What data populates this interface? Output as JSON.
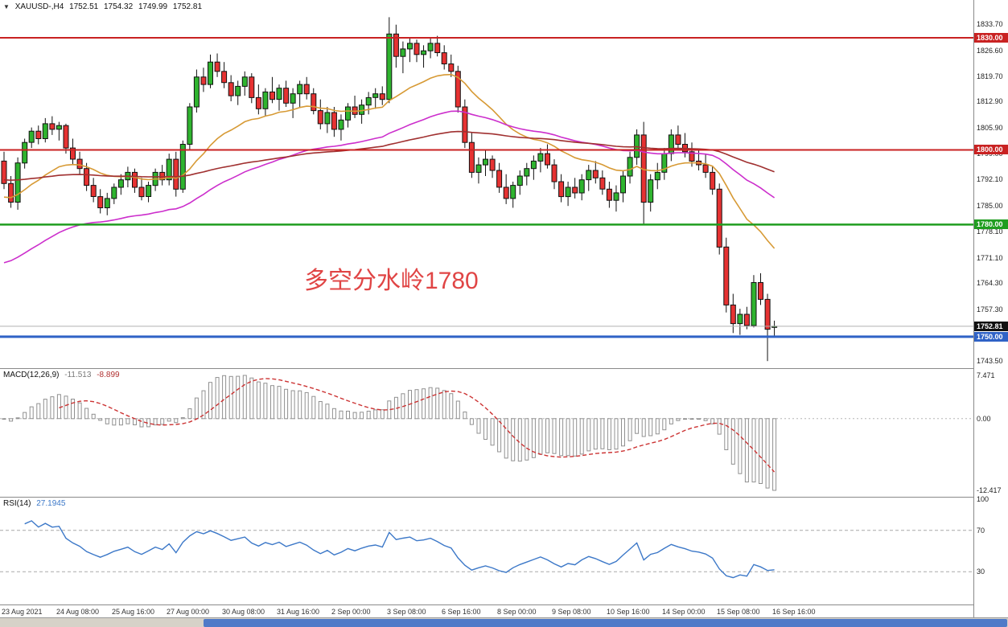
{
  "window": {
    "dropdown_icon": "▼",
    "symbol_period": "XAUUSD-,H4",
    "open": "1752.51",
    "high": "1754.32",
    "low": "1749.99",
    "close": "1752.81"
  },
  "annotation": {
    "text": "多空分水岭1780",
    "color": "#e04545"
  },
  "indicator_labels": {
    "macd_name": "MACD(12,26,9)",
    "macd_main": "-11.513",
    "macd_signal": "-8.899",
    "rsi_name": "RSI(14)",
    "rsi_value": "27.1945"
  },
  "price_axis": {
    "labels": [
      "1833.70",
      "1826.60",
      "1819.70",
      "1812.90",
      "1805.90",
      "1799.00",
      "1792.10",
      "1785.00",
      "1778.10",
      "1771.10",
      "1764.30",
      "1757.30",
      "1743.50"
    ],
    "tags": [
      {
        "value": "1830.00",
        "price": 1830.0,
        "color": "#c92222",
        "text_color": "#ffffff"
      },
      {
        "value": "1800.00",
        "price": 1800.0,
        "color": "#c92222",
        "text_color": "#ffffff"
      },
      {
        "value": "1780.00",
        "price": 1780.0,
        "color": "#1f9d1f",
        "text_color": "#ffffff"
      },
      {
        "value": "1752.81",
        "price": 1752.81,
        "color": "#111111",
        "text_color": "#ffffff"
      },
      {
        "value": "1750.00",
        "price": 1750.0,
        "color": "#2f62c6",
        "text_color": "#ffffff"
      }
    ]
  },
  "macd_axis": {
    "top": "7.471",
    "zero": "0.00",
    "bottom": "-12.417"
  },
  "rsi_axis": {
    "labels": [
      {
        "text": "100",
        "value": 100
      },
      {
        "text": "70",
        "value": 70
      },
      {
        "text": "30",
        "value": 30
      }
    ]
  },
  "time_axis": {
    "labels": [
      {
        "text": "23 Aug 2021",
        "index": 0
      },
      {
        "text": "24 Aug 08:00",
        "index": 8
      },
      {
        "text": "25 Aug 16:00",
        "index": 16
      },
      {
        "text": "27 Aug 00:00",
        "index": 24
      },
      {
        "text": "30 Aug 08:00",
        "index": 32
      },
      {
        "text": "31 Aug 16:00",
        "index": 40
      },
      {
        "text": "2 Sep 00:00",
        "index": 48
      },
      {
        "text": "3 Sep 08:00",
        "index": 56
      },
      {
        "text": "6 Sep 16:00",
        "index": 64
      },
      {
        "text": "8 Sep 00:00",
        "index": 72
      },
      {
        "text": "9 Sep 08:00",
        "index": 80
      },
      {
        "text": "10 Sep 16:00",
        "index": 88
      },
      {
        "text": "14 Sep 00:00",
        "index": 96
      },
      {
        "text": "15 Sep 08:00",
        "index": 104
      },
      {
        "text": "16 Sep 16:00",
        "index": 112
      }
    ]
  },
  "scrollbar": {
    "thumb_color": "#4f7ac8",
    "track_color": "#d6d2c8"
  },
  "chart_data": {
    "type": "candlestick",
    "symbol": "XAUUSD-",
    "timeframe": "H4",
    "title": "XAUUSD-,H4 1752.51 1754.32 1749.99 1752.81",
    "y_axis": {
      "top": 1840.1,
      "bottom": 1741.6
    },
    "candle_colors": {
      "up": "#2fb42f",
      "down": "#e63232",
      "outline": "#111111"
    },
    "hlines": [
      {
        "price": 1830.0,
        "color": "#c92222",
        "width": 2
      },
      {
        "price": 1800.0,
        "color": "#c92222",
        "width": 2
      },
      {
        "price": 1780.0,
        "color": "#1f9d1f",
        "width": 2.5
      },
      {
        "price": 1750.0,
        "color": "#2f62c6",
        "width": 3
      },
      {
        "price": 1752.81,
        "color": "#b0b0b0",
        "width": 1
      }
    ],
    "moving_averages": [
      {
        "period": 21,
        "color": "#d79a35",
        "seed": 1787
      },
      {
        "period": 55,
        "color": "#cc2ecc",
        "seed": 1769
      },
      {
        "period": 120,
        "color": "#a03030",
        "seed": 1792
      }
    ],
    "macd": {
      "fast": 12,
      "slow": 26,
      "signal": 9,
      "histogram_color": "#909090",
      "signal_color": "#cc3333",
      "display_top": 7.471,
      "display_bottom": -12.417
    },
    "rsi": {
      "period": 14,
      "color": "#3c78c8",
      "levels": [
        70,
        30
      ],
      "level_color": "#a8a8a8",
      "range": [
        0,
        100
      ],
      "current": 27.1945
    },
    "candles": [
      [
        1797.0,
        1799.5,
        1789.5,
        1791.0
      ],
      [
        1791.0,
        1793.0,
        1784.5,
        1786.0
      ],
      [
        1786.0,
        1798.0,
        1784.0,
        1796.5
      ],
      [
        1796.5,
        1803.0,
        1795.0,
        1802.0
      ],
      [
        1802.0,
        1806.0,
        1800.5,
        1805.0
      ],
      [
        1805.0,
        1806.5,
        1801.5,
        1803.0
      ],
      [
        1803.0,
        1808.5,
        1802.0,
        1807.0
      ],
      [
        1807.0,
        1809.0,
        1804.0,
        1805.5
      ],
      [
        1805.5,
        1807.5,
        1802.5,
        1806.5
      ],
      [
        1806.5,
        1807.0,
        1799.0,
        1800.5
      ],
      [
        1800.5,
        1803.0,
        1796.0,
        1797.5
      ],
      [
        1797.5,
        1799.5,
        1793.5,
        1795.0
      ],
      [
        1795.0,
        1796.5,
        1789.0,
        1790.5
      ],
      [
        1790.5,
        1792.5,
        1786.0,
        1787.5
      ],
      [
        1787.5,
        1789.5,
        1783.0,
        1784.5
      ],
      [
        1784.5,
        1788.5,
        1782.5,
        1787.0
      ],
      [
        1787.0,
        1791.0,
        1785.5,
        1790.0
      ],
      [
        1790.0,
        1793.5,
        1788.0,
        1792.0
      ],
      [
        1792.0,
        1795.5,
        1790.0,
        1794.0
      ],
      [
        1794.0,
        1795.0,
        1788.5,
        1790.0
      ],
      [
        1790.0,
        1792.5,
        1786.5,
        1787.5
      ],
      [
        1787.5,
        1791.5,
        1786.0,
        1790.5
      ],
      [
        1790.5,
        1795.0,
        1789.0,
        1794.0
      ],
      [
        1794.0,
        1796.0,
        1790.5,
        1792.0
      ],
      [
        1792.0,
        1799.0,
        1790.5,
        1797.5
      ],
      [
        1797.5,
        1799.5,
        1787.5,
        1789.5
      ],
      [
        1789.5,
        1802.5,
        1788.5,
        1801.5
      ],
      [
        1801.5,
        1812.5,
        1800.0,
        1811.5
      ],
      [
        1811.5,
        1821.5,
        1810.0,
        1819.5
      ],
      [
        1819.5,
        1822.0,
        1815.5,
        1817.5
      ],
      [
        1817.5,
        1825.5,
        1816.5,
        1823.5
      ],
      [
        1823.5,
        1825.8,
        1819.5,
        1821.0
      ],
      [
        1821.0,
        1823.5,
        1816.5,
        1818.0
      ],
      [
        1818.0,
        1820.0,
        1813.0,
        1814.5
      ],
      [
        1814.5,
        1818.5,
        1812.0,
        1817.0
      ],
      [
        1817.0,
        1821.0,
        1814.5,
        1819.5
      ],
      [
        1819.5,
        1820.5,
        1812.5,
        1814.0
      ],
      [
        1814.0,
        1817.5,
        1809.5,
        1811.0
      ],
      [
        1811.0,
        1816.5,
        1809.0,
        1815.5
      ],
      [
        1815.5,
        1819.5,
        1812.5,
        1813.5
      ],
      [
        1813.5,
        1817.5,
        1810.5,
        1816.5
      ],
      [
        1816.5,
        1818.5,
        1811.5,
        1812.5
      ],
      [
        1812.5,
        1816.5,
        1808.5,
        1815.0
      ],
      [
        1815.0,
        1818.5,
        1811.5,
        1817.5
      ],
      [
        1817.5,
        1819.5,
        1813.5,
        1815.0
      ],
      [
        1815.0,
        1816.5,
        1809.5,
        1810.5
      ],
      [
        1810.5,
        1813.5,
        1805.5,
        1807.0
      ],
      [
        1807.0,
        1811.5,
        1804.5,
        1810.0
      ],
      [
        1810.0,
        1811.5,
        1803.5,
        1805.5
      ],
      [
        1805.5,
        1809.5,
        1802.5,
        1808.0
      ],
      [
        1808.0,
        1812.5,
        1806.0,
        1811.5
      ],
      [
        1811.5,
        1814.5,
        1808.5,
        1809.5
      ],
      [
        1809.5,
        1813.5,
        1807.0,
        1812.0
      ],
      [
        1812.0,
        1815.5,
        1809.5,
        1814.0
      ],
      [
        1814.0,
        1816.5,
        1811.0,
        1815.0
      ],
      [
        1815.0,
        1817.0,
        1812.0,
        1813.5
      ],
      [
        1813.5,
        1835.5,
        1812.5,
        1831.0
      ],
      [
        1831.0,
        1833.5,
        1822.0,
        1825.0
      ],
      [
        1825.0,
        1829.0,
        1820.5,
        1827.0
      ],
      [
        1827.0,
        1830.0,
        1823.5,
        1828.5
      ],
      [
        1828.5,
        1829.5,
        1823.5,
        1825.5
      ],
      [
        1825.5,
        1828.0,
        1822.0,
        1826.5
      ],
      [
        1826.5,
        1830.0,
        1824.5,
        1828.5
      ],
      [
        1828.5,
        1830.5,
        1825.0,
        1826.0
      ],
      [
        1826.0,
        1828.0,
        1821.5,
        1823.0
      ],
      [
        1823.0,
        1825.5,
        1819.5,
        1821.0
      ],
      [
        1821.0,
        1822.5,
        1810.0,
        1811.5
      ],
      [
        1811.5,
        1813.5,
        1800.5,
        1802.0
      ],
      [
        1802.0,
        1804.5,
        1792.5,
        1794.0
      ],
      [
        1794.0,
        1798.0,
        1791.0,
        1796.0
      ],
      [
        1796.0,
        1800.0,
        1793.0,
        1797.5
      ],
      [
        1797.5,
        1798.5,
        1792.5,
        1794.5
      ],
      [
        1794.5,
        1796.5,
        1788.5,
        1790.0
      ],
      [
        1790.0,
        1793.5,
        1785.5,
        1787.0
      ],
      [
        1787.0,
        1791.5,
        1784.5,
        1790.5
      ],
      [
        1790.5,
        1794.5,
        1788.0,
        1793.0
      ],
      [
        1793.0,
        1796.5,
        1790.5,
        1795.0
      ],
      [
        1795.0,
        1798.5,
        1792.0,
        1797.0
      ],
      [
        1797.0,
        1800.5,
        1794.0,
        1799.0
      ],
      [
        1799.0,
        1801.5,
        1795.0,
        1796.0
      ],
      [
        1796.0,
        1797.5,
        1789.5,
        1791.5
      ],
      [
        1791.5,
        1793.5,
        1786.0,
        1787.5
      ],
      [
        1787.5,
        1791.5,
        1785.0,
        1790.0
      ],
      [
        1790.0,
        1792.5,
        1787.0,
        1788.5
      ],
      [
        1788.5,
        1793.5,
        1786.5,
        1792.0
      ],
      [
        1792.0,
        1796.0,
        1789.0,
        1794.5
      ],
      [
        1794.5,
        1797.0,
        1791.0,
        1792.5
      ],
      [
        1792.5,
        1794.5,
        1788.0,
        1789.5
      ],
      [
        1789.5,
        1791.5,
        1784.5,
        1786.5
      ],
      [
        1786.5,
        1790.5,
        1783.5,
        1788.5
      ],
      [
        1788.5,
        1794.5,
        1786.0,
        1793.0
      ],
      [
        1793.0,
        1799.5,
        1791.0,
        1798.0
      ],
      [
        1798.0,
        1805.5,
        1796.0,
        1804.0
      ],
      [
        1804.0,
        1807.5,
        1780.0,
        1786.0
      ],
      [
        1786.0,
        1793.5,
        1783.5,
        1792.0
      ],
      [
        1792.0,
        1796.5,
        1789.5,
        1794.0
      ],
      [
        1794.0,
        1800.5,
        1792.0,
        1799.0
      ],
      [
        1799.0,
        1805.5,
        1797.0,
        1804.0
      ],
      [
        1804.0,
        1806.5,
        1800.0,
        1801.5
      ],
      [
        1801.5,
        1804.5,
        1798.0,
        1799.5
      ],
      [
        1799.5,
        1802.0,
        1795.5,
        1797.0
      ],
      [
        1797.0,
        1800.0,
        1794.5,
        1796.0
      ],
      [
        1796.0,
        1799.0,
        1792.5,
        1794.0
      ],
      [
        1794.0,
        1795.5,
        1788.0,
        1789.5
      ],
      [
        1789.5,
        1791.0,
        1772.0,
        1774.0
      ],
      [
        1774.0,
        1776.5,
        1756.5,
        1758.5
      ],
      [
        1758.5,
        1761.5,
        1751.0,
        1753.5
      ],
      [
        1753.5,
        1757.5,
        1750.5,
        1756.0
      ],
      [
        1756.0,
        1758.0,
        1752.0,
        1753.0
      ],
      [
        1753.0,
        1766.5,
        1752.5,
        1764.5
      ],
      [
        1764.5,
        1767.0,
        1758.5,
        1760.0
      ],
      [
        1760.0,
        1761.5,
        1743.5,
        1752.0
      ],
      [
        1752.51,
        1754.32,
        1749.99,
        1752.81
      ]
    ]
  }
}
